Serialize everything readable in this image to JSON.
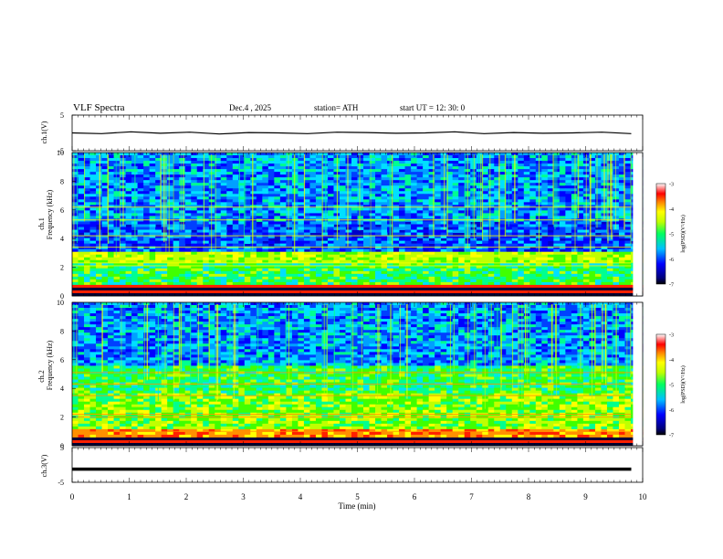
{
  "header": {
    "title": "VLF  Spectra",
    "date": "Dec.4  , 2025",
    "station": "station= ATH",
    "start_ut": "start  UT  =   12: 30: 0"
  },
  "chart_data": [
    {
      "type": "line",
      "panel": "ch1-waveform",
      "ylabel": "ch.1(V)",
      "ylim": [
        -5,
        5
      ],
      "y_ticks": [
        "5",
        "-5"
      ],
      "x_range_min": [
        0,
        9.8
      ],
      "series": [
        {
          "values": [
            0.0,
            -0.2,
            0.3,
            -0.1,
            0.2,
            -0.3,
            0.1,
            0.0,
            -0.2,
            0.2,
            0.1,
            -0.1,
            0.0,
            0.3,
            -0.2,
            0.1,
            -0.1,
            0.0,
            0.2,
            -0.2
          ],
          "color": "#000000"
        }
      ]
    },
    {
      "type": "heatmap",
      "panel": "ch1-spectrogram",
      "ylabel": "Frequency  (kHz)",
      "channel_label": "ch.1",
      "ylim": [
        0,
        10
      ],
      "y_ticks": [
        "0",
        "2",
        "4",
        "6",
        "8",
        "10"
      ],
      "colorbar": {
        "label": "log(PSD)(V²/Hz)",
        "range": [
          -7,
          -3
        ],
        "ticks": [
          "-3",
          "-4",
          "-5",
          "-6",
          "-7"
        ]
      }
    },
    {
      "type": "heatmap",
      "panel": "ch2-spectrogram",
      "ylabel": "Frequency  (kHz)",
      "channel_label": "ch.2",
      "ylim": [
        0,
        10
      ],
      "y_ticks": [
        "0",
        "2",
        "4",
        "6",
        "8",
        "10"
      ],
      "colorbar": {
        "label": "log(PSD)(V²/Hz)",
        "range": [
          -7,
          -3
        ],
        "ticks": [
          "-3",
          "-4",
          "-5",
          "-6",
          "-7"
        ]
      }
    },
    {
      "type": "line",
      "panel": "ch3-waveform",
      "ylabel": "ch.3(V)",
      "ylim": [
        -5,
        5
      ],
      "y_ticks": [
        "5",
        "-5"
      ],
      "x_range_min": [
        0,
        9.8
      ],
      "series": [
        {
          "values": [
            -1.2,
            -1.2,
            -1.2,
            -1.2
          ],
          "color": "#000000"
        }
      ]
    }
  ],
  "x_axis": {
    "label": "Time  (min)",
    "range": [
      0,
      10
    ],
    "ticks": [
      "0",
      "1",
      "2",
      "3",
      "4",
      "5",
      "6",
      "7",
      "8",
      "9",
      "10"
    ]
  }
}
